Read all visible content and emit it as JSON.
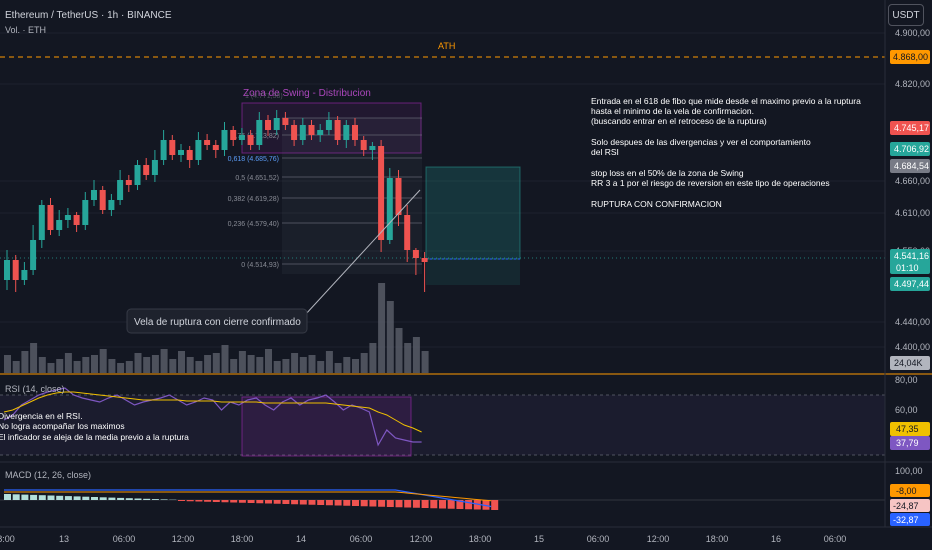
{
  "header": {
    "symbol_title": "Ethereum / TetherUS · 1h · BINANCE",
    "volume_label": "Vol. · ETH",
    "currency_button": "USDT"
  },
  "price_axis": {
    "ticks": [
      "4.900,00",
      "4.820,00",
      "4.660,00",
      "4.610,00",
      "4.550,00",
      "4.440,00",
      "4.400,00"
    ],
    "ath_label": "ATH",
    "ath_value": "4.868,00",
    "tags": {
      "red": "4.745,17",
      "green": "4.706,92",
      "gray": "4.684,54",
      "current": "4.541,16",
      "countdown": "01:10",
      "target": "4.497,44",
      "volume": "24,04K"
    }
  },
  "annotations": {
    "zone_title": "Zona de Swing - Distribucion",
    "breakout_callout": "Vela de ruptura con cierre confirmado",
    "notes": [
      "Entrada en el 618 de fibo que mide desde el maximo previo a la ruptura",
      "hasta el minimo de la vela de confirmacion.",
      "(buscando entrar en el retroceso de la ruptura)",
      "",
      "Solo despues de las divergencias y ver el comportamiento",
      "del RSI",
      "",
      "stop loss en el 50% de la zona de Swing",
      "RR 3 a 1 por el riesgo de reversion en este tipo de operaciones",
      "",
      "RUPTURA CON CONFIRMACION"
    ],
    "fib_levels": [
      "0,75 (4.713,82)",
      "0,618 (4.685,76)",
      "0,5 (4.651,52)",
      "0,382 (4.619,28)",
      "0,236 (4.579,40)",
      "0 (4.514,93)"
    ],
    "fib_top_label": "1 (4.771,38)"
  },
  "rsi_pane": {
    "title": "RSI (14, close)",
    "notes": [
      "Divergencia en el RSI.",
      "No logra acompañar los maximos",
      "El inficador se aleja de la media previo a la ruptura"
    ],
    "axis": [
      "80,00",
      "60,00",
      "40,00"
    ],
    "tags": {
      "ma": "47,35",
      "rsi": "37,79"
    }
  },
  "macd_pane": {
    "title": "MACD (12, 26, close)",
    "axis": [
      "100,00",
      "0,00"
    ],
    "tags": {
      "signal": "-8,00",
      "hist": "-24,87",
      "macd": "-32,87"
    }
  },
  "time_axis": [
    "8:00",
    "13",
    "06:00",
    "12:00",
    "18:00",
    "14",
    "06:00",
    "12:00",
    "18:00",
    "15",
    "06:00",
    "12:00",
    "18:00",
    "16",
    "06:00"
  ],
  "colors": {
    "up": "#26a69a",
    "down": "#ef5350",
    "rsi": "#7e57c2",
    "rsi_ma": "#f0c000",
    "ath": "#ff9800",
    "background": "#131722"
  }
}
